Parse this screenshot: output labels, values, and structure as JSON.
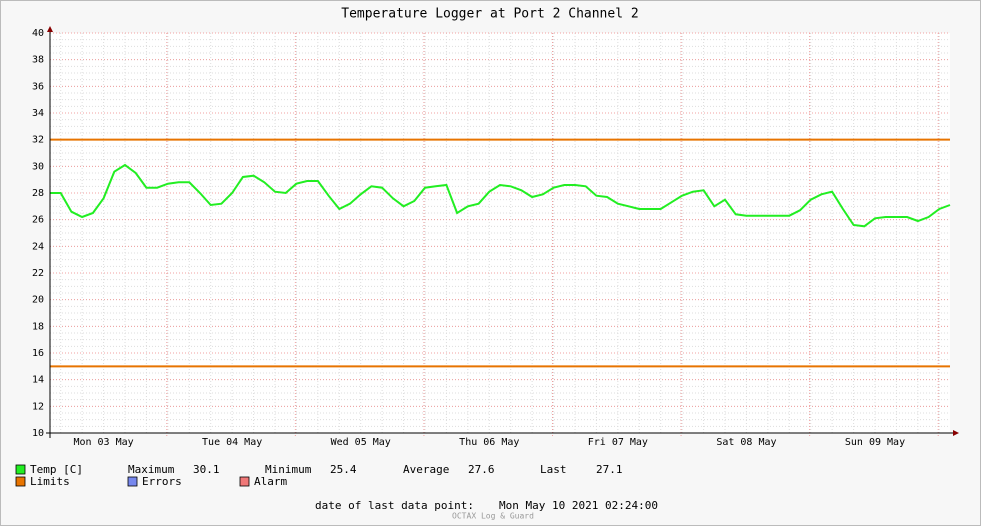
{
  "chart_data": {
    "type": "line",
    "title": "Temperature Logger at Port 2 Channel 2",
    "categories": [
      null,
      null,
      null,
      null,
      null,
      "Mon 03 May",
      null,
      null,
      null,
      null,
      null,
      null,
      null,
      null,
      null,
      null,
      null,
      "Tue 04 May",
      null,
      null,
      null,
      null,
      null,
      null,
      null,
      null,
      null,
      null,
      null,
      "Wed 05 May",
      null,
      null,
      null,
      null,
      null,
      null,
      null,
      null,
      null,
      null,
      null,
      "Thu 06 May",
      null,
      null,
      null,
      null,
      null,
      null,
      null,
      null,
      null,
      null,
      null,
      "Fri 07 May",
      null,
      null,
      null,
      null,
      null,
      null,
      null,
      null,
      null,
      null,
      null,
      "Sat 08 May",
      null,
      null,
      null,
      null,
      null,
      null,
      null,
      null,
      null,
      null,
      null,
      "Sun 09 May",
      null,
      null,
      null,
      null,
      null,
      null,
      null
    ],
    "series": [
      {
        "name": "Temp [C]",
        "color": "#22ee22",
        "values": [
          28.0,
          28.0,
          26.6,
          26.2,
          26.5,
          27.6,
          29.6,
          30.1,
          29.5,
          28.4,
          28.4,
          28.7,
          28.8,
          28.8,
          28.0,
          27.1,
          27.2,
          28.0,
          29.2,
          29.3,
          28.8,
          28.1,
          28.0,
          28.7,
          28.9,
          28.9,
          27.8,
          26.8,
          27.2,
          27.9,
          28.5,
          28.4,
          27.6,
          27.0,
          27.4,
          28.4,
          28.5,
          28.6,
          26.5,
          27.0,
          27.2,
          28.1,
          28.6,
          28.5,
          28.2,
          27.7,
          27.9,
          28.4,
          28.6,
          28.6,
          28.5,
          27.8,
          27.7,
          27.2,
          27.0,
          26.8,
          26.8,
          26.8,
          27.3,
          27.8,
          28.1,
          28.2,
          27.0,
          27.5,
          26.4,
          26.3,
          26.3,
          26.3,
          26.3,
          26.3,
          26.7,
          27.5,
          27.9,
          28.1,
          26.8,
          25.6,
          25.5,
          26.1,
          26.2,
          26.2,
          26.2,
          25.9,
          26.2,
          26.8,
          27.1
        ]
      }
    ],
    "limits": {
      "name": "Limits",
      "color": "#e87400",
      "values": [
        32,
        15
      ]
    },
    "legend_extra": [
      {
        "name": "Errors",
        "color": "#7788ee"
      },
      {
        "name": "Alarm",
        "color": "#f07878"
      }
    ],
    "stats": [
      {
        "label": "Maximum",
        "value": 30.1
      },
      {
        "label": "Minimum",
        "value": 25.4
      },
      {
        "label": "Average",
        "value": 27.6
      },
      {
        "label": "Last",
        "value": 27.1
      }
    ],
    "ylim": [
      10,
      40
    ],
    "yticks": [
      10,
      12,
      14,
      16,
      18,
      20,
      22,
      24,
      26,
      28,
      30,
      32,
      34,
      36,
      38,
      40
    ],
    "grid": true,
    "footer": {
      "label": "date of last data point:",
      "value": "Mon May 10 2021 02:24:00"
    },
    "watermark": "OCTAX Log & Guard"
  }
}
